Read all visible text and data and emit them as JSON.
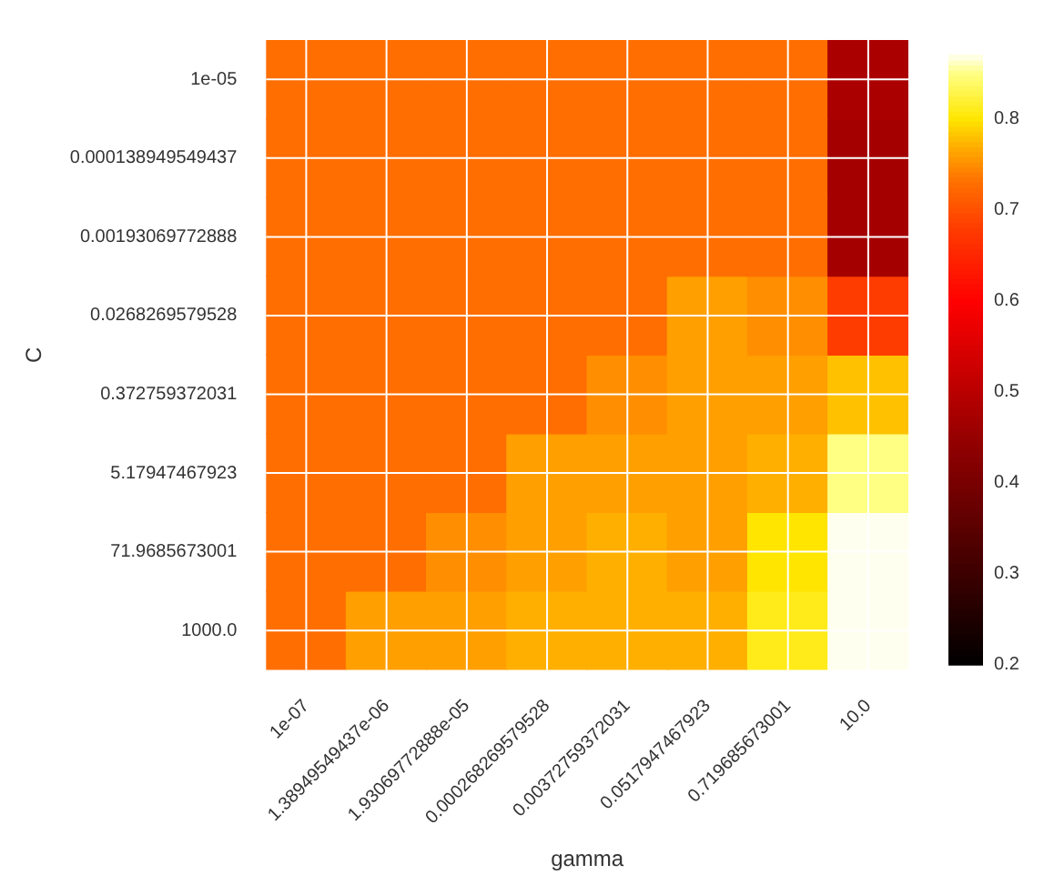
{
  "chart_data": {
    "type": "heatmap",
    "xlabel": "gamma",
    "ylabel": "C",
    "categories": [
      "1e-07",
      "1.38949549437e-06",
      "1.93069772888e-05",
      "0.000268269579528",
      "0.00372759372031",
      "0.0517947467923",
      "0.719685673001",
      "10.0"
    ],
    "y_categories": [
      "1e-05",
      "0.000138949549437",
      "0.00193069772888",
      "0.0268269579528",
      "0.372759372031",
      "5.17947467923",
      "71.9685673001",
      "1000.0"
    ],
    "cells": [
      [
        0.73,
        0.73,
        0.73,
        0.73,
        0.73,
        0.73,
        0.73,
        0.48
      ],
      [
        0.73,
        0.73,
        0.73,
        0.73,
        0.73,
        0.73,
        0.73,
        0.47
      ],
      [
        0.73,
        0.73,
        0.73,
        0.73,
        0.73,
        0.73,
        0.73,
        0.47
      ],
      [
        0.73,
        0.73,
        0.73,
        0.73,
        0.73,
        0.76,
        0.75,
        0.68
      ],
      [
        0.73,
        0.73,
        0.73,
        0.73,
        0.75,
        0.76,
        0.76,
        0.78
      ],
      [
        0.73,
        0.73,
        0.73,
        0.76,
        0.76,
        0.76,
        0.77,
        0.85
      ],
      [
        0.73,
        0.73,
        0.75,
        0.76,
        0.77,
        0.76,
        0.8,
        0.87
      ],
      [
        0.73,
        0.76,
        0.76,
        0.77,
        0.77,
        0.77,
        0.81,
        0.87
      ]
    ],
    "clim": [
      0.2,
      0.87
    ],
    "cticks": [
      0.2,
      0.3,
      0.4,
      0.5,
      0.6,
      0.7,
      0.8
    ],
    "grid": true
  }
}
